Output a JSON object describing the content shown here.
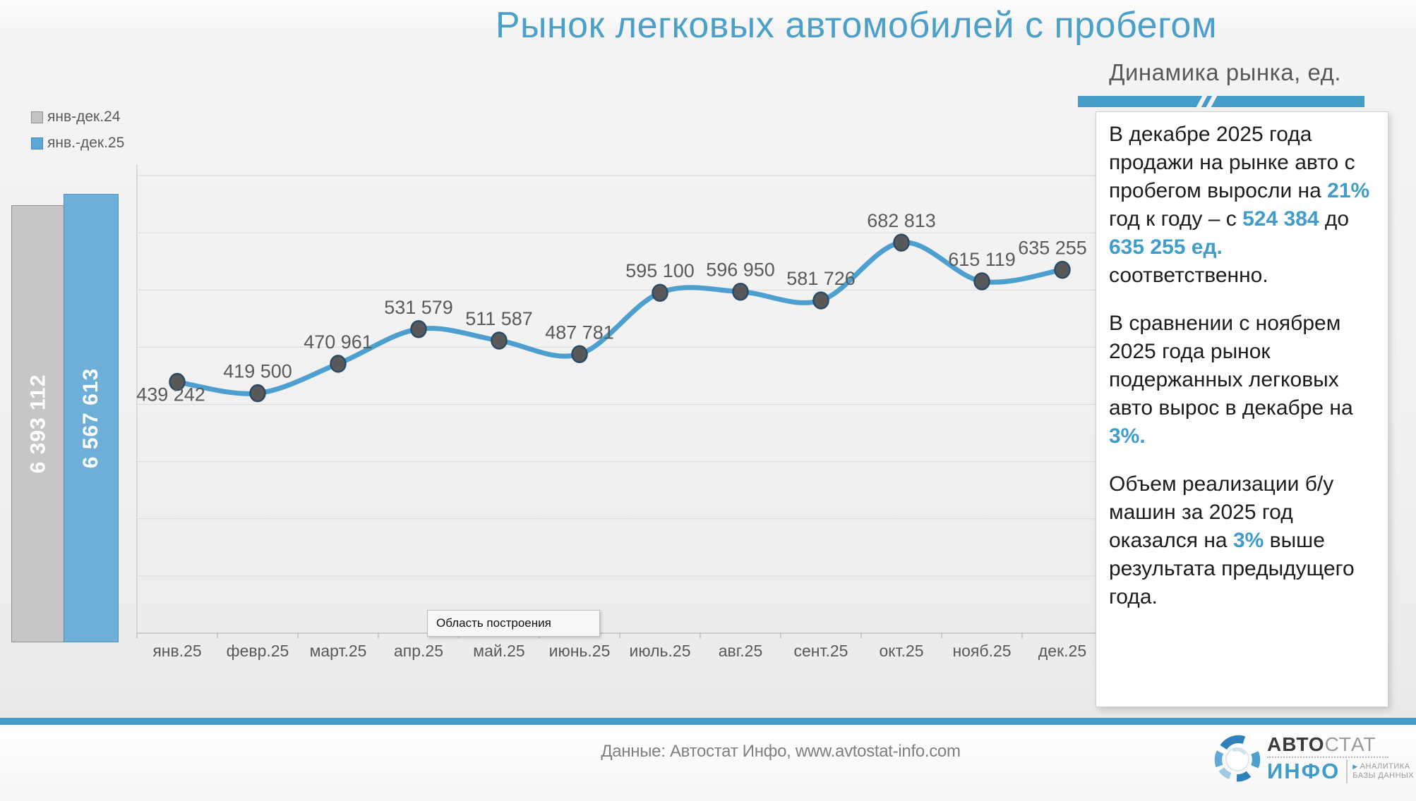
{
  "title": "Рынок легковых автомобилей с пробегом",
  "subtitle": "Динамика рынка, ед.",
  "tooltip": "Область построения",
  "legend": [
    {
      "label": "янв-дек.24",
      "color": "#c3c3c3"
    },
    {
      "label": "янв.-дек.25",
      "color": "#5BA7D6"
    }
  ],
  "bars": [
    {
      "name": "янв-дек.24",
      "label": "6 393 112",
      "value": 6393112,
      "color": "#c6c6c6"
    },
    {
      "name": "янв.-дек.25",
      "label": "6 567 613",
      "value": 6567613,
      "color": "#6DAFD8"
    }
  ],
  "chart_data": {
    "type": "line",
    "title": "Динамика рынка, ед.",
    "x": [
      "янв.25",
      "февр.25",
      "март.25",
      "апр.25",
      "май.25",
      "июнь.25",
      "июль.25",
      "авг.25",
      "сент.25",
      "окт.25",
      "нояб.25",
      "дек.25"
    ],
    "series": [
      {
        "name": "янв.-дек.25",
        "values": [
          439242,
          419500,
          470961,
          531579,
          511587,
          487781,
          595100,
          596950,
          581726,
          682813,
          615119,
          635255
        ],
        "color": "#4C9FCE"
      }
    ],
    "annual_totals": [
      {
        "name": "янв-дек.24",
        "value": 6393112
      },
      {
        "name": "янв.-дек.25",
        "value": 6567613
      }
    ],
    "ylim": [
      0,
      800000
    ],
    "grid_step": 100000,
    "grid": true,
    "legend_position": "top-left",
    "marker_color": "#595959",
    "marker_stroke": "#2B4A68",
    "label_color": "#5a5a5a",
    "axis_color": "#c0c0c0",
    "grid_color": "#dadada"
  },
  "panel": {
    "paragraphs": [
      [
        {
          "t": "В декабре 2025 года продажи на рынке авто с пробегом выросли на "
        },
        {
          "t": "21%",
          "hl": true
        },
        {
          "t": " год к году – с "
        },
        {
          "t": "524 384",
          "hl": true
        },
        {
          "t": " до "
        },
        {
          "t": "635 255 ед.",
          "hl": true
        },
        {
          "t": " соответственно."
        }
      ],
      [
        {
          "t": "В сравнении с ноябрем 2025 года рынок подержанных легковых авто вырос в декабре на "
        },
        {
          "t": "3%.",
          "hl": true
        }
      ],
      [
        {
          "t": "Объем реализации б/у машин за 2025 год оказался на "
        },
        {
          "t": "3%",
          "hl": true
        },
        {
          "t": " выше результата предыдущего года."
        }
      ]
    ]
  },
  "footer": {
    "source": "Данные: Автостат Инфо, www.avtostat-info.com"
  },
  "logo": {
    "brand_bold": "АВТО",
    "brand_light": "СТАТ",
    "brand_info": "ИНФО",
    "tagline1": "АНАЛИТИКА",
    "tagline2": "БАЗЫ ДАННЫХ"
  },
  "colors": {
    "accent": "#459CC9",
    "title": "#4BA0CA",
    "panel_highlight": "#3F9CCB"
  }
}
